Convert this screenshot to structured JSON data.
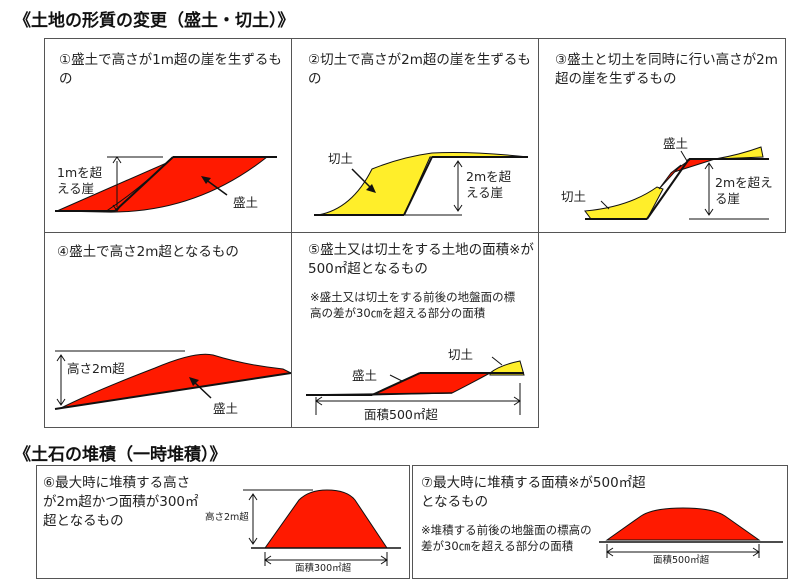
{
  "section1_title": "《土地の形質の変更（盛土・切土）》",
  "section2_title": "《土石の堆積（一時堆積）》",
  "colors": {
    "fill": "#ff1a00",
    "cut": "#ffee2a",
    "line": "#111111"
  },
  "p1": {
    "caption": "①盛土で高さが1m超の崖を生ずるもの",
    "height_label": "1mを超える崖",
    "fill_label": "盛土"
  },
  "p2": {
    "caption": "②切土で高さが2m超の崖を生ずるもの",
    "cut_label": "切土",
    "height_label": "2mを超える崖"
  },
  "p3": {
    "caption": "③盛土と切土を同時に行い高さが2m超の崖を生ずるもの",
    "fill_label": "盛土",
    "cut_label": "切土",
    "height_label": "2mを超える崖"
  },
  "p4": {
    "caption": "④盛土で高さ2m超となるもの",
    "height_label": "高さ2m超",
    "fill_label": "盛土"
  },
  "p5": {
    "caption": "⑤盛土又は切土をする土地の面積※が500㎡超となるもの",
    "note": "※盛土又は切土をする前後の地盤面の標高の差が30㎝を超える部分の面積",
    "cut_label": "切土",
    "fill_label": "盛土",
    "area_label": "面積500㎡超"
  },
  "p6": {
    "caption": "⑥最大時に堆積する高さが2m超かつ面積が300㎡超となるもの",
    "height_label": "高さ2m超",
    "area_label": "面積300㎡超"
  },
  "p7": {
    "caption": "⑦最大時に堆積する面積※が500㎡超となるもの",
    "note": "※堆積する前後の地盤面の標高の差が30㎝を超える部分の面積",
    "area_label": "面積500㎡超"
  }
}
